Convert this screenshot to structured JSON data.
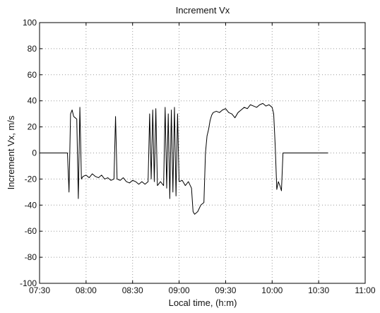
{
  "chart_data": {
    "type": "line",
    "title": "Increment  Vx",
    "xlabel": "Local time, (h:m)",
    "ylabel": "Increment Vx, m/s",
    "xlim": [
      "07:30",
      "11:00"
    ],
    "ylim": [
      -100,
      100
    ],
    "grid": true,
    "x_ticks": [
      "07:30",
      "08:00",
      "08:30",
      "09:00",
      "09:30",
      "10:00",
      "10:30",
      "11:00"
    ],
    "y_ticks": [
      100,
      80,
      60,
      40,
      20,
      0,
      -20,
      -40,
      -60,
      -80,
      -100
    ],
    "series": [
      {
        "color": "#000000",
        "points": [
          [
            "07:30",
            0
          ],
          [
            "07:48",
            0
          ],
          [
            "07:49",
            -30
          ],
          [
            "07:50",
            30
          ],
          [
            "07:51",
            33
          ],
          [
            "07:52",
            28
          ],
          [
            "07:53",
            27
          ],
          [
            "07:54",
            26
          ],
          [
            "07:55",
            -35
          ],
          [
            "07:56",
            35
          ],
          [
            "07:57",
            -20
          ],
          [
            "07:58",
            -18
          ],
          [
            "08:00",
            -17
          ],
          [
            "08:02",
            -19
          ],
          [
            "08:04",
            -16
          ],
          [
            "08:06",
            -18
          ],
          [
            "08:08",
            -19
          ],
          [
            "08:10",
            -17
          ],
          [
            "08:12",
            -20
          ],
          [
            "08:14",
            -19
          ],
          [
            "08:16",
            -21
          ],
          [
            "08:18",
            -20
          ],
          [
            "08:19",
            28
          ],
          [
            "08:20",
            -20
          ],
          [
            "08:22",
            -21
          ],
          [
            "08:24",
            -19
          ],
          [
            "08:26",
            -22
          ],
          [
            "08:28",
            -23
          ],
          [
            "08:30",
            -21
          ],
          [
            "08:32",
            -22
          ],
          [
            "08:34",
            -24
          ],
          [
            "08:36",
            -22
          ],
          [
            "08:38",
            -24
          ],
          [
            "08:40",
            -22
          ],
          [
            "08:41",
            30
          ],
          [
            "08:42",
            -20
          ],
          [
            "08:43",
            33
          ],
          [
            "08:44",
            -22
          ],
          [
            "08:45",
            34
          ],
          [
            "08:46",
            -25
          ],
          [
            "08:48",
            -22
          ],
          [
            "08:50",
            -25
          ],
          [
            "08:51",
            35
          ],
          [
            "08:52",
            -27
          ],
          [
            "08:53",
            30
          ],
          [
            "08:54",
            -35
          ],
          [
            "08:55",
            33
          ],
          [
            "08:56",
            -30
          ],
          [
            "08:57",
            35
          ],
          [
            "08:58",
            -33
          ],
          [
            "08:59",
            30
          ],
          [
            "09:00",
            -22
          ],
          [
            "09:02",
            -21
          ],
          [
            "09:04",
            -25
          ],
          [
            "09:06",
            -22
          ],
          [
            "09:08",
            -27
          ],
          [
            "09:09",
            -45
          ],
          [
            "09:10",
            -47
          ],
          [
            "09:12",
            -45
          ],
          [
            "09:14",
            -40
          ],
          [
            "09:16",
            -38
          ],
          [
            "09:17",
            0
          ],
          [
            "09:18",
            13
          ],
          [
            "09:19",
            18
          ],
          [
            "09:20",
            25
          ],
          [
            "09:21",
            29
          ],
          [
            "09:22",
            31
          ],
          [
            "09:24",
            32
          ],
          [
            "09:26",
            31
          ],
          [
            "09:28",
            33
          ],
          [
            "09:30",
            34
          ],
          [
            "09:32",
            31
          ],
          [
            "09:34",
            30
          ],
          [
            "09:36",
            27
          ],
          [
            "09:38",
            31
          ],
          [
            "09:40",
            33
          ],
          [
            "09:42",
            35
          ],
          [
            "09:44",
            34
          ],
          [
            "09:46",
            37
          ],
          [
            "09:48",
            36
          ],
          [
            "09:50",
            35
          ],
          [
            "09:52",
            37
          ],
          [
            "09:54",
            38
          ],
          [
            "09:56",
            36
          ],
          [
            "09:58",
            37
          ],
          [
            "10:00",
            35
          ],
          [
            "10:01",
            30
          ],
          [
            "10:02",
            5
          ],
          [
            "10:03",
            -28
          ],
          [
            "10:04",
            -22
          ],
          [
            "10:05",
            -25
          ],
          [
            "10:06",
            -29
          ],
          [
            "10:07",
            0
          ],
          [
            "10:36",
            0
          ]
        ]
      }
    ]
  }
}
